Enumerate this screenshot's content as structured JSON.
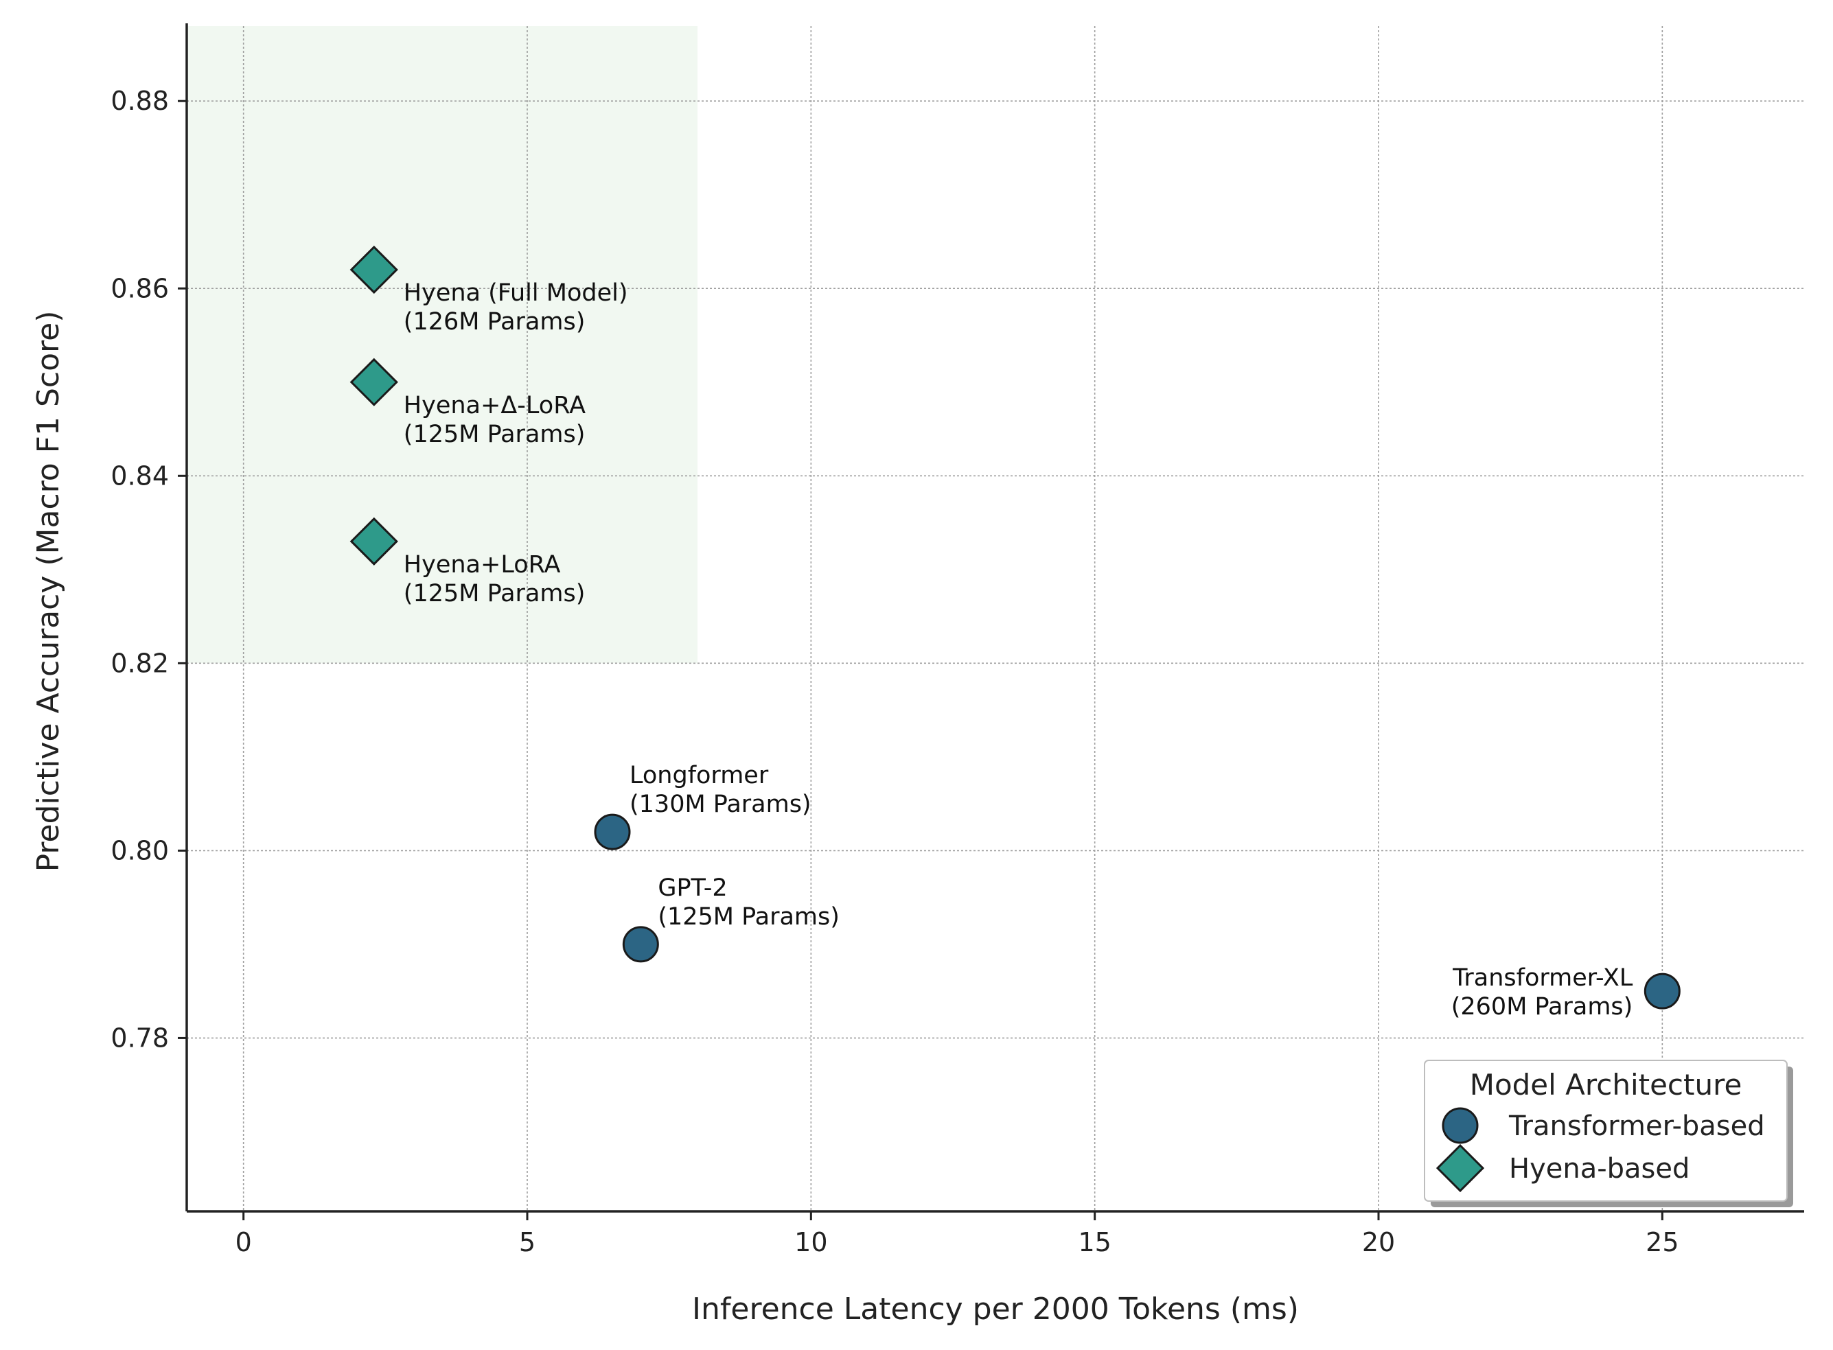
{
  "chart_data": {
    "type": "scatter",
    "title": "",
    "xlabel": "Inference Latency per 2000 Tokens (ms)",
    "ylabel": "Predictive Accuracy (Macro F1 Score)",
    "xlim": [
      -1,
      27.5
    ],
    "ylim": [
      0.7615,
      0.888
    ],
    "xticks": [
      0,
      5,
      10,
      15,
      20,
      25
    ],
    "yticks": [
      0.78,
      0.8,
      0.82,
      0.84,
      0.86,
      0.88
    ],
    "xtick_labels": [
      "0",
      "5",
      "10",
      "15",
      "20",
      "25"
    ],
    "ytick_labels": [
      "0.78",
      "0.80",
      "0.82",
      "0.84",
      "0.86",
      "0.88"
    ],
    "grid": true,
    "highlight_region": {
      "x": [
        -1,
        8
      ],
      "y": [
        0.82,
        0.888
      ],
      "color": "#f1f8f1"
    },
    "series": [
      {
        "name": "Transformer-based",
        "marker": "circle",
        "color": "#2c6584",
        "points": [
          {
            "x": 6.5,
            "y": 0.802,
            "label": [
              "Longformer",
              "(130M Params)"
            ],
            "label_pos": "above-right"
          },
          {
            "x": 7.0,
            "y": 0.79,
            "label": [
              "GPT-2",
              "(125M Params)"
            ],
            "label_pos": "above-right"
          },
          {
            "x": 25.0,
            "y": 0.785,
            "label": [
              "Transformer-XL",
              "(260M Params)"
            ],
            "label_pos": "left"
          }
        ]
      },
      {
        "name": "Hyena-based",
        "marker": "diamond",
        "color": "#2e9a8a",
        "points": [
          {
            "x": 2.3,
            "y": 0.862,
            "label": [
              "Hyena (Full Model)",
              "(126M Params)"
            ],
            "label_pos": "below-right"
          },
          {
            "x": 2.3,
            "y": 0.85,
            "label": [
              "Hyena+Δ-LoRA",
              "(125M Params)"
            ],
            "label_pos": "below-right"
          },
          {
            "x": 2.3,
            "y": 0.833,
            "label": [
              "Hyena+LoRA",
              "(125M Params)"
            ],
            "label_pos": "below-right"
          }
        ]
      }
    ],
    "legend": {
      "title": "Model Architecture",
      "position": "lower-right",
      "entries": [
        "Transformer-based",
        "Hyena-based"
      ]
    }
  }
}
